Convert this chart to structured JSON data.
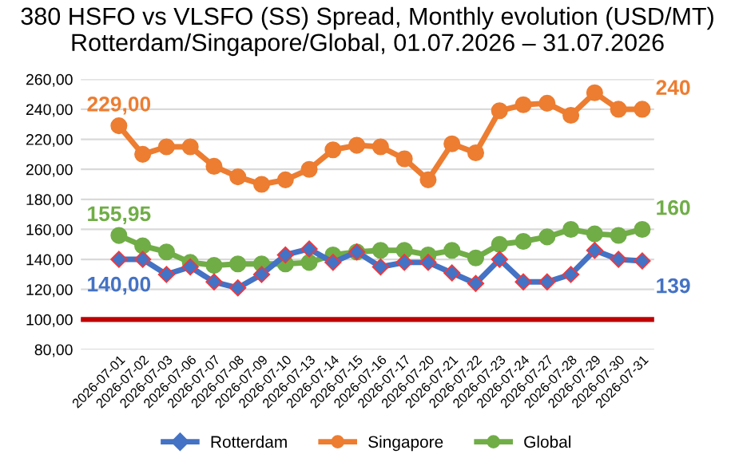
{
  "chart_data": {
    "type": "line",
    "title": "380 HSFO vs VLSFO (SS) Spread, Monthly evolution (USD/MT)\nRotterdam/Singapore/Global, 01.07.2026 – 31.07.2026",
    "categories": [
      "2026-07-01",
      "2026-07-02",
      "2026-07-03",
      "2026-07-06",
      "2026-07-07",
      "2026-07-08",
      "2026-07-09",
      "2026-07-10",
      "2026-07-13",
      "2026-07-14",
      "2026-07-15",
      "2026-07-16",
      "2026-07-17",
      "2026-07-20",
      "2026-07-21",
      "2026-07-22",
      "2026-07-23",
      "2026-07-24",
      "2026-07-27",
      "2026-07-28",
      "2026-07-29",
      "2026-07-30",
      "2026-07-31"
    ],
    "series": [
      {
        "name": "Rotterdam",
        "color": "#4472c4",
        "marker": "diamond",
        "values": [
          140,
          140,
          130,
          135,
          125,
          121,
          130,
          143,
          147,
          138,
          145,
          135,
          138,
          138,
          131,
          124,
          140,
          125,
          125,
          130,
          146,
          140,
          139
        ],
        "value_labels": [
          "140,00",
          null,
          null,
          null,
          null,
          null,
          null,
          null,
          null,
          null,
          null,
          null,
          null,
          null,
          null,
          null,
          null,
          null,
          null,
          null,
          null,
          null,
          "139"
        ]
      },
      {
        "name": "Singapore",
        "color": "#ed7d31",
        "marker": "circle",
        "values": [
          229,
          210,
          215,
          215,
          202,
          195,
          190,
          193,
          200,
          213,
          216,
          215,
          207,
          193,
          217,
          211,
          239,
          243,
          244,
          236,
          251,
          240,
          240
        ],
        "value_labels": [
          "229,00",
          null,
          null,
          null,
          null,
          null,
          null,
          null,
          null,
          null,
          null,
          null,
          null,
          null,
          null,
          null,
          null,
          null,
          null,
          null,
          null,
          null,
          "240"
        ]
      },
      {
        "name": "Global",
        "color": "#70ad47",
        "marker": "circle",
        "values": [
          155.95,
          149,
          145,
          138,
          136,
          137,
          137,
          137,
          138,
          143,
          145,
          146,
          146,
          143,
          146,
          141,
          150,
          152,
          155,
          160,
          157,
          156,
          160
        ],
        "value_labels": [
          "155,95",
          null,
          null,
          null,
          null,
          null,
          null,
          null,
          null,
          null,
          null,
          null,
          null,
          null,
          null,
          null,
          null,
          null,
          null,
          null,
          null,
          null,
          "160"
        ]
      }
    ],
    "ylim": [
      80,
      260
    ],
    "yticks": [
      {
        "value": 80,
        "label": "80,00"
      },
      {
        "value": 100,
        "label": "100,00"
      },
      {
        "value": 120,
        "label": "120,00"
      },
      {
        "value": 140,
        "label": "140,00"
      },
      {
        "value": 160,
        "label": "160,00"
      },
      {
        "value": 180,
        "label": "180,00"
      },
      {
        "value": 200,
        "label": "200,00"
      },
      {
        "value": 220,
        "label": "220,00"
      },
      {
        "value": 240,
        "label": "240,00"
      },
      {
        "value": 260,
        "label": "260,00"
      }
    ],
    "ref_lines": [
      {
        "axis": "y",
        "value": 100,
        "color": "#c00000"
      }
    ],
    "grid": "y",
    "legend": "bottom"
  }
}
